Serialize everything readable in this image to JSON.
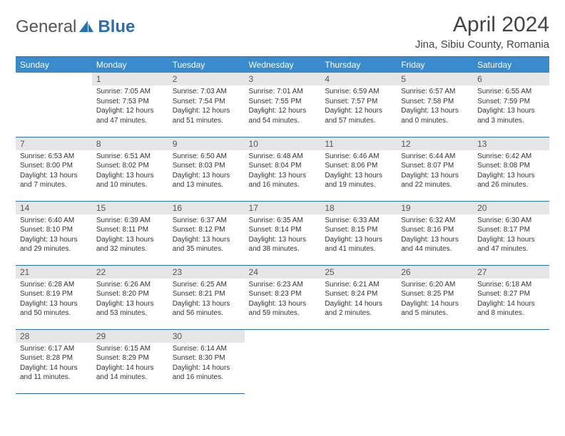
{
  "brand": {
    "word1": "General",
    "word2": "Blue"
  },
  "title": "April 2024",
  "location": "Jina, Sibiu County, Romania",
  "header_bg": "#3a8bce",
  "border_color": "#2a6fb5",
  "daynum_bg": "#e6e6e6",
  "weekdays": [
    "Sunday",
    "Monday",
    "Tuesday",
    "Wednesday",
    "Thursday",
    "Friday",
    "Saturday"
  ],
  "start_offset": 1,
  "days": [
    {
      "n": 1,
      "sr": "7:05 AM",
      "ss": "7:53 PM",
      "dl": "12 hours and 47 minutes."
    },
    {
      "n": 2,
      "sr": "7:03 AM",
      "ss": "7:54 PM",
      "dl": "12 hours and 51 minutes."
    },
    {
      "n": 3,
      "sr": "7:01 AM",
      "ss": "7:55 PM",
      "dl": "12 hours and 54 minutes."
    },
    {
      "n": 4,
      "sr": "6:59 AM",
      "ss": "7:57 PM",
      "dl": "12 hours and 57 minutes."
    },
    {
      "n": 5,
      "sr": "6:57 AM",
      "ss": "7:58 PM",
      "dl": "13 hours and 0 minutes."
    },
    {
      "n": 6,
      "sr": "6:55 AM",
      "ss": "7:59 PM",
      "dl": "13 hours and 3 minutes."
    },
    {
      "n": 7,
      "sr": "6:53 AM",
      "ss": "8:00 PM",
      "dl": "13 hours and 7 minutes."
    },
    {
      "n": 8,
      "sr": "6:51 AM",
      "ss": "8:02 PM",
      "dl": "13 hours and 10 minutes."
    },
    {
      "n": 9,
      "sr": "6:50 AM",
      "ss": "8:03 PM",
      "dl": "13 hours and 13 minutes."
    },
    {
      "n": 10,
      "sr": "6:48 AM",
      "ss": "8:04 PM",
      "dl": "13 hours and 16 minutes."
    },
    {
      "n": 11,
      "sr": "6:46 AM",
      "ss": "8:06 PM",
      "dl": "13 hours and 19 minutes."
    },
    {
      "n": 12,
      "sr": "6:44 AM",
      "ss": "8:07 PM",
      "dl": "13 hours and 22 minutes."
    },
    {
      "n": 13,
      "sr": "6:42 AM",
      "ss": "8:08 PM",
      "dl": "13 hours and 26 minutes."
    },
    {
      "n": 14,
      "sr": "6:40 AM",
      "ss": "8:10 PM",
      "dl": "13 hours and 29 minutes."
    },
    {
      "n": 15,
      "sr": "6:39 AM",
      "ss": "8:11 PM",
      "dl": "13 hours and 32 minutes."
    },
    {
      "n": 16,
      "sr": "6:37 AM",
      "ss": "8:12 PM",
      "dl": "13 hours and 35 minutes."
    },
    {
      "n": 17,
      "sr": "6:35 AM",
      "ss": "8:14 PM",
      "dl": "13 hours and 38 minutes."
    },
    {
      "n": 18,
      "sr": "6:33 AM",
      "ss": "8:15 PM",
      "dl": "13 hours and 41 minutes."
    },
    {
      "n": 19,
      "sr": "6:32 AM",
      "ss": "8:16 PM",
      "dl": "13 hours and 44 minutes."
    },
    {
      "n": 20,
      "sr": "6:30 AM",
      "ss": "8:17 PM",
      "dl": "13 hours and 47 minutes."
    },
    {
      "n": 21,
      "sr": "6:28 AM",
      "ss": "8:19 PM",
      "dl": "13 hours and 50 minutes."
    },
    {
      "n": 22,
      "sr": "6:26 AM",
      "ss": "8:20 PM",
      "dl": "13 hours and 53 minutes."
    },
    {
      "n": 23,
      "sr": "6:25 AM",
      "ss": "8:21 PM",
      "dl": "13 hours and 56 minutes."
    },
    {
      "n": 24,
      "sr": "6:23 AM",
      "ss": "8:23 PM",
      "dl": "13 hours and 59 minutes."
    },
    {
      "n": 25,
      "sr": "6:21 AM",
      "ss": "8:24 PM",
      "dl": "14 hours and 2 minutes."
    },
    {
      "n": 26,
      "sr": "6:20 AM",
      "ss": "8:25 PM",
      "dl": "14 hours and 5 minutes."
    },
    {
      "n": 27,
      "sr": "6:18 AM",
      "ss": "8:27 PM",
      "dl": "14 hours and 8 minutes."
    },
    {
      "n": 28,
      "sr": "6:17 AM",
      "ss": "8:28 PM",
      "dl": "14 hours and 11 minutes."
    },
    {
      "n": 29,
      "sr": "6:15 AM",
      "ss": "8:29 PM",
      "dl": "14 hours and 14 minutes."
    },
    {
      "n": 30,
      "sr": "6:14 AM",
      "ss": "8:30 PM",
      "dl": "14 hours and 16 minutes."
    }
  ],
  "labels": {
    "sunrise": "Sunrise:",
    "sunset": "Sunset:",
    "daylight": "Daylight:"
  }
}
